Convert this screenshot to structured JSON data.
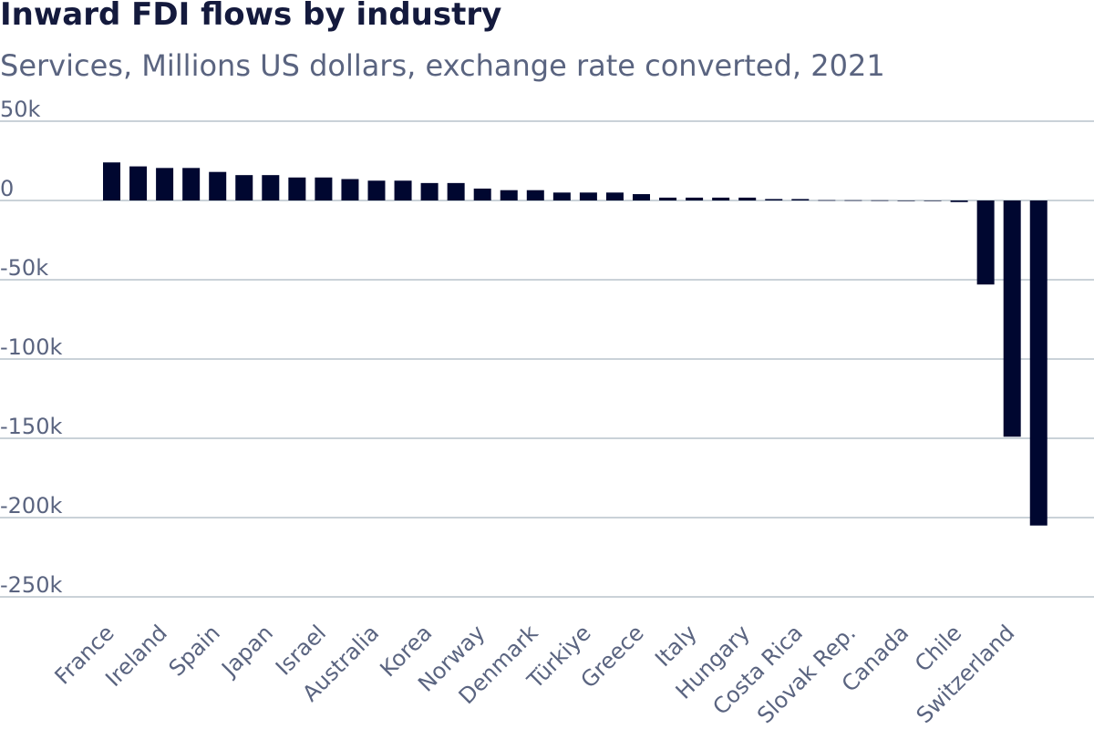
{
  "title": "Inward FDI flows by industry",
  "subtitle": "Services, Millions US dollars, exchange rate converted, 2021",
  "colors": {
    "bar": "#000730",
    "text": "#5a6480",
    "title": "#141a3d",
    "grid": "#b9c3cc"
  },
  "chart_data": {
    "type": "bar",
    "ylim": [
      -250000,
      50000
    ],
    "yticks": [
      50000,
      0,
      -50000,
      -100000,
      -150000,
      -200000,
      -250000
    ],
    "ytick_labels": [
      "50k",
      "0",
      "-50k",
      "-100k",
      "-150k",
      "-200k",
      "-250k"
    ],
    "grid": true,
    "categories": [
      "France",
      "",
      "Ireland",
      "",
      "Spain",
      "",
      "Japan",
      "",
      "Israel",
      "",
      "Australia",
      "",
      "Korea",
      "",
      "Norway",
      "",
      "Denmark",
      "",
      "Türkiye",
      "",
      "Greece",
      "",
      "Italy",
      "",
      "Hungary",
      "",
      "Costa Rica",
      "",
      "Slovak Rep.",
      "",
      "Canada",
      "",
      "Chile",
      "",
      "Switzerland",
      ""
    ],
    "values": [
      24000,
      21500,
      20500,
      20500,
      18000,
      16000,
      16000,
      14500,
      14500,
      13500,
      12500,
      12500,
      11000,
      11000,
      7500,
      6500,
      6500,
      5000,
      5000,
      5000,
      4000,
      1800,
      1800,
      1800,
      1800,
      900,
      900,
      200,
      150,
      100,
      0,
      -50,
      -1000,
      -53000,
      -149000,
      -205000
    ]
  }
}
